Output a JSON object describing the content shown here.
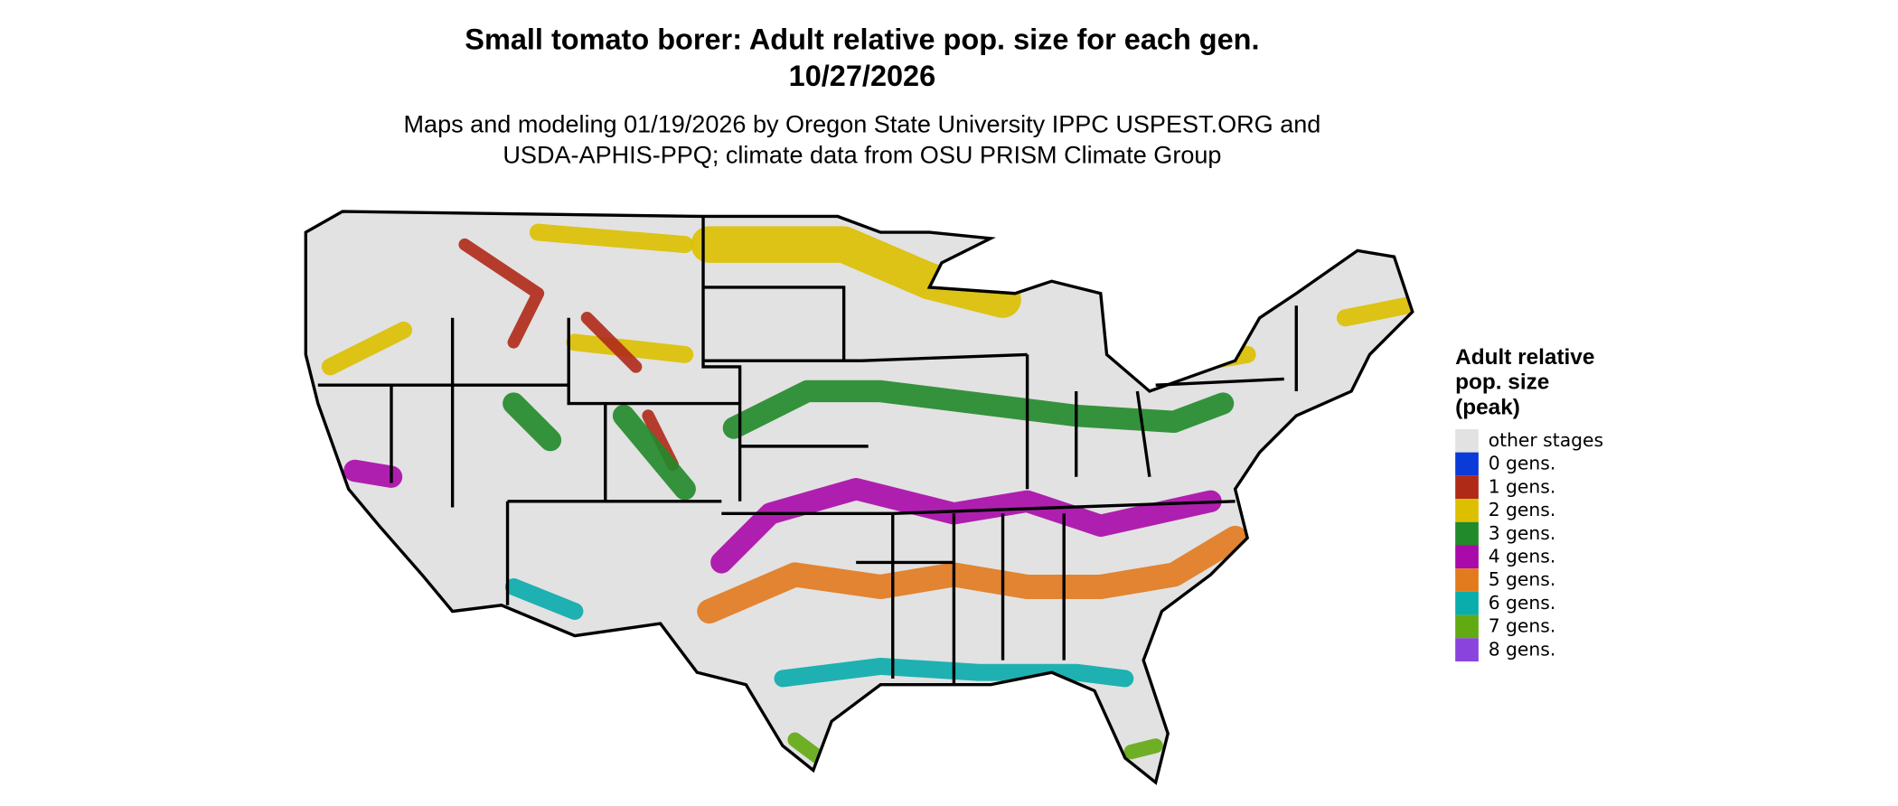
{
  "header": {
    "title": [
      "Small tomato borer: Adult relative pop. size for each gen.",
      "10/27/2026"
    ],
    "subtitle": [
      "Maps and modeling 01/19/2026 by Oregon State University IPPC USPEST.ORG and",
      "USDA-APHIS-PPQ; climate data from OSU PRISM Climate Group"
    ]
  },
  "legend": {
    "title": [
      "Adult relative",
      "pop. size",
      "(peak)"
    ],
    "items": [
      {
        "label": "other stages",
        "color": "#e2e2e2"
      },
      {
        "label": "0 gens.",
        "color": "#0a3ad8"
      },
      {
        "label": "1 gens.",
        "color": "#b02a18"
      },
      {
        "label": "2 gens.",
        "color": "#dcc000"
      },
      {
        "label": "3 gens.",
        "color": "#218a2a"
      },
      {
        "label": "4 gens.",
        "color": "#aa0aaa"
      },
      {
        "label": "5 gens.",
        "color": "#e27a1e"
      },
      {
        "label": "6 gens.",
        "color": "#0aacac"
      },
      {
        "label": "7 gens.",
        "color": "#62aa12"
      },
      {
        "label": "8 gens.",
        "color": "#8a44dd"
      }
    ]
  }
}
